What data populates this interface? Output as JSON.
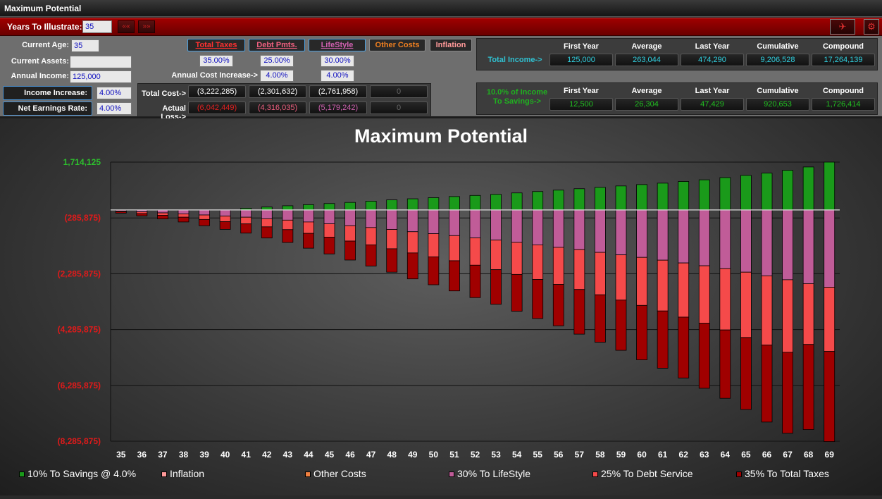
{
  "window": {
    "title": "Maximum Potential"
  },
  "toolbar": {
    "years_label": "Years To Illustrate:",
    "years_value": "35",
    "prev_icon": "double-chevron-left-icon",
    "next_icon": "double-chevron-right-icon"
  },
  "inputs": {
    "current_age_label": "Current Age:",
    "current_age": "35",
    "current_assets_label": "Current Assets:",
    "current_assets": "",
    "annual_income_label": "Annual Income:",
    "annual_income": "125,000",
    "income_increase_label": "Income Increase:",
    "income_increase": "4.00%",
    "net_earnings_label": "Net Earnings Rate:",
    "net_earnings": "4.00%",
    "annual_cost_increase_label": "Annual Cost Increase->"
  },
  "categories": [
    {
      "label": "Total Taxes",
      "pct": "35.00%",
      "increase": "",
      "total_cost": "(3,222,285)",
      "actual_loss": "(6,042,449)",
      "color": "#e02020"
    },
    {
      "label": "Debt Pmts.",
      "pct": "25.00%",
      "increase": "4.00%",
      "total_cost": "(2,301,632)",
      "actual_loss": "(4,316,035)",
      "color": "#f06080"
    },
    {
      "label": "LifeStyle",
      "pct": "30.00%",
      "increase": "4.00%",
      "total_cost": "(2,761,958)",
      "actual_loss": "(5,179,242)",
      "color": "#d060b0"
    },
    {
      "label": "Other Costs",
      "pct": "",
      "increase": "",
      "total_cost": "0",
      "actual_loss": "0",
      "color": "#f08020"
    },
    {
      "label": "Inflation",
      "color": "#ff9999"
    }
  ],
  "cost_rows": {
    "total_cost_label": "Total Cost->",
    "actual_loss_label": "Actual Loss->"
  },
  "income_summary": {
    "label": "Total Income->",
    "headers": [
      "First Year",
      "Average",
      "Last Year",
      "Cumulative",
      "Compound"
    ],
    "values": [
      "125,000",
      "263,044",
      "474,290",
      "9,206,528",
      "17,264,139"
    ]
  },
  "savings_summary": {
    "label_line1": "10.0% of Income",
    "label_line2": "To Savings->",
    "headers": [
      "First Year",
      "Average",
      "Last Year",
      "Cumulative",
      "Compound"
    ],
    "values": [
      "12,500",
      "26,304",
      "47,429",
      "920,653",
      "1,726,414"
    ]
  },
  "chart_data": {
    "type": "bar",
    "title": "Maximum Potential",
    "categories": [
      "35",
      "36",
      "37",
      "38",
      "39",
      "40",
      "41",
      "42",
      "43",
      "44",
      "45",
      "46",
      "47",
      "48",
      "49",
      "50",
      "51",
      "52",
      "53",
      "54",
      "55",
      "56",
      "57",
      "58",
      "59",
      "60",
      "61",
      "62",
      "63",
      "64",
      "65",
      "66",
      "67",
      "68",
      "69"
    ],
    "ylim": [
      -8285875,
      1714125
    ],
    "yticks": [
      {
        "value": 1714125,
        "label": "1,714,125",
        "color": "#2dbf2d"
      },
      {
        "value": -285875,
        "label": "(285,875)",
        "color": "#e01a1a"
      },
      {
        "value": -2285875,
        "label": "(2,285,875)",
        "color": "#e01a1a"
      },
      {
        "value": -4285875,
        "label": "(4,285,875)",
        "color": "#e01a1a"
      },
      {
        "value": -6285875,
        "label": "(6,285,875)",
        "color": "#e01a1a"
      },
      {
        "value": -8285875,
        "label": "(8,285,875)",
        "color": "#e01a1a"
      }
    ],
    "grid": true,
    "stacked": true,
    "series": [
      {
        "name": "10% To Savings @ 4.0%",
        "color": "#1a9a1a",
        "values": [
          0,
          0,
          0,
          0,
          0,
          0,
          60000,
          105000,
          150000,
          190000,
          230000,
          270000,
          315000,
          360000,
          400000,
          440000,
          480000,
          520000,
          560000,
          610000,
          660000,
          710000,
          760000,
          810000,
          860000,
          910000,
          960000,
          1020000,
          1080000,
          1160000,
          1240000,
          1320000,
          1420000,
          1540000,
          1714125
        ]
      },
      {
        "name": "30% To LifeStyle",
        "color": "#c05c98",
        "values": [
          -37500,
          -70000,
          -105000,
          -140000,
          -180000,
          -220000,
          -260000,
          -315000,
          -365000,
          -430000,
          -495000,
          -565000,
          -630000,
          -700000,
          -780000,
          -850000,
          -920000,
          -1000000,
          -1080000,
          -1160000,
          -1250000,
          -1340000,
          -1420000,
          -1520000,
          -1610000,
          -1700000,
          -1800000,
          -1900000,
          -2000000,
          -2100000,
          -2230000,
          -2360000,
          -2500000,
          -2640000,
          -2770000
        ]
      },
      {
        "name": "25% To Debt Service",
        "color": "#f54a4a",
        "values": [
          -31250,
          -60000,
          -90000,
          -120000,
          -160000,
          -200000,
          -240000,
          -290000,
          -340000,
          -410000,
          -480000,
          -550000,
          -620000,
          -690000,
          -760000,
          -830000,
          -900000,
          -980000,
          -1060000,
          -1150000,
          -1240000,
          -1330000,
          -1430000,
          -1520000,
          -1620000,
          -1720000,
          -1820000,
          -1940000,
          -2060000,
          -2200000,
          -2340000,
          -2480000,
          -2600000,
          -2180000,
          -2300000
        ]
      },
      {
        "name": "35% To Total Taxes",
        "color": "#a00000",
        "values": [
          -43750,
          -80000,
          -125000,
          -170000,
          -225000,
          -275000,
          -330000,
          -400000,
          -460000,
          -530000,
          -600000,
          -680000,
          -760000,
          -840000,
          -930000,
          -1000000,
          -1080000,
          -1160000,
          -1240000,
          -1320000,
          -1400000,
          -1480000,
          -1600000,
          -1700000,
          -1800000,
          -1950000,
          -2050000,
          -2180000,
          -2330000,
          -2450000,
          -2580000,
          -2760000,
          -2900000,
          -3050000,
          -3230000
        ]
      }
    ],
    "legend": [
      {
        "label": "10% To Savings @ 4.0%",
        "color": "#1a9a1a"
      },
      {
        "label": "Inflation",
        "color": "#ff9999"
      },
      {
        "label": "Other Costs",
        "color": "#f08040"
      },
      {
        "label": "30% To LifeStyle",
        "color": "#c05c98"
      },
      {
        "label": "25% To Debt Service",
        "color": "#f54a4a"
      },
      {
        "label": "35% To Total Taxes",
        "color": "#a00000"
      }
    ]
  }
}
